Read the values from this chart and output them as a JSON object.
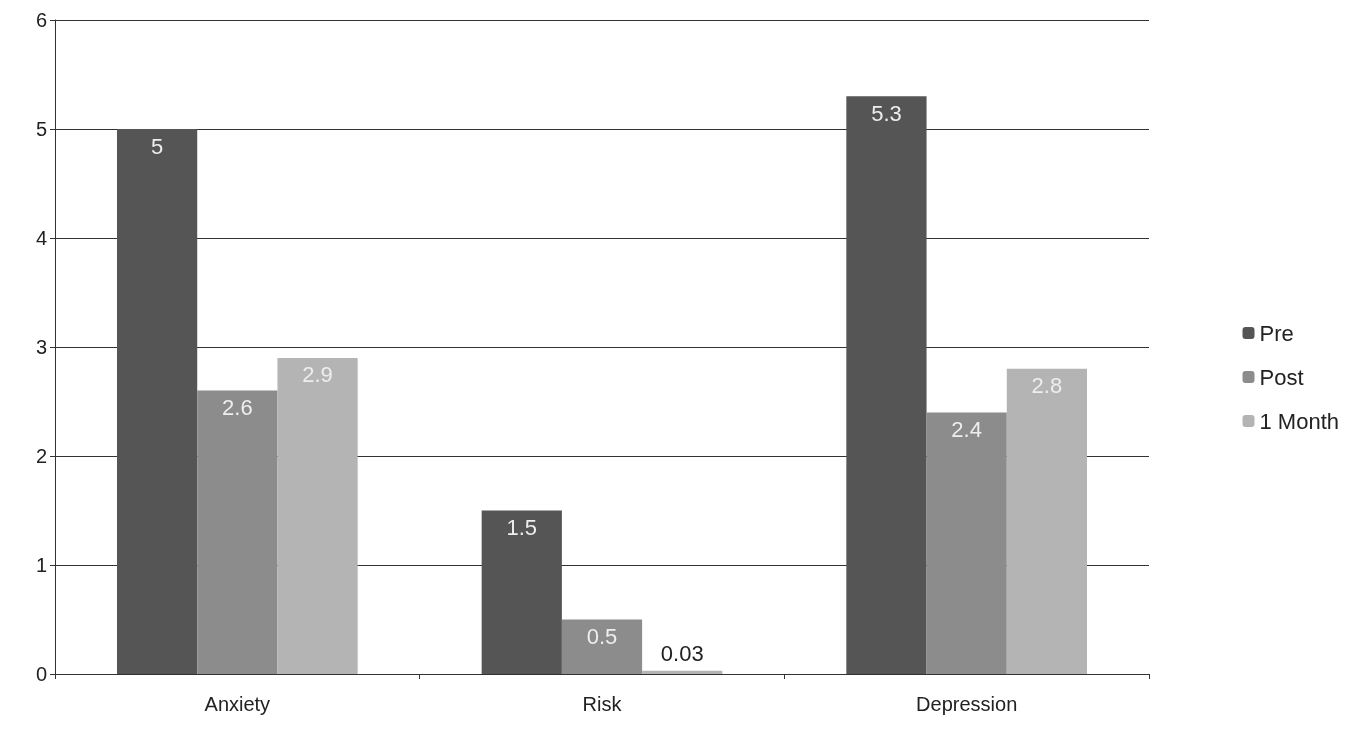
{
  "chart_data": {
    "type": "bar",
    "categories": [
      "Anxiety",
      "Risk",
      "Depression"
    ],
    "series": [
      {
        "name": "Pre",
        "color": "#555555",
        "values": [
          5,
          1.5,
          5.3
        ]
      },
      {
        "name": "Post",
        "color": "#8c8c8c",
        "values": [
          2.6,
          0.5,
          2.4
        ]
      },
      {
        "name": "1 Month",
        "color": "#b4b4b4",
        "values": [
          2.9,
          0.03,
          2.8
        ]
      }
    ],
    "ylim": [
      0,
      6
    ],
    "yticks": [
      0,
      1,
      2,
      3,
      4,
      5,
      6
    ],
    "grid": "y",
    "legend": "right",
    "data_labels": true
  }
}
